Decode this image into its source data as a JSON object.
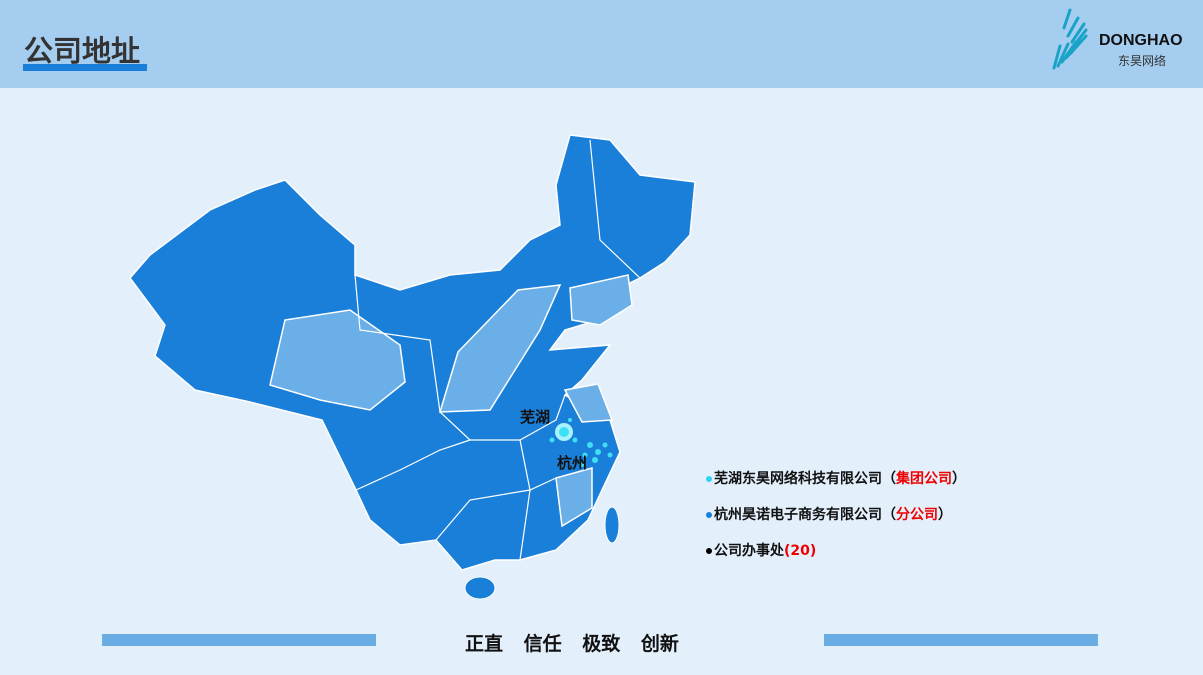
{
  "header": {
    "title": "公司地址",
    "logo_en": "DONGHAO",
    "logo_cn": "东昊网络"
  },
  "map": {
    "cities": [
      "芜湖",
      "杭州"
    ],
    "colors": {
      "province": "#1a7fd8",
      "highlight": "#6aafe8",
      "marker": "#3de0f5"
    }
  },
  "legend": [
    {
      "name": "芜湖东昊网络科技有限公司",
      "open": "（",
      "tag": "集团公司",
      "close": "）",
      "dot": "#2ed3f0"
    },
    {
      "name": "杭州昊诺电子商务有限公司",
      "open": "（",
      "tag": "分公司",
      "close": "）",
      "dot": "#1a7fd8"
    },
    {
      "name": "公司办事处",
      "tag": "(20)",
      "dot": "#000000"
    }
  ],
  "footer": {
    "slogan": "正直  信任  极致  创新"
  }
}
